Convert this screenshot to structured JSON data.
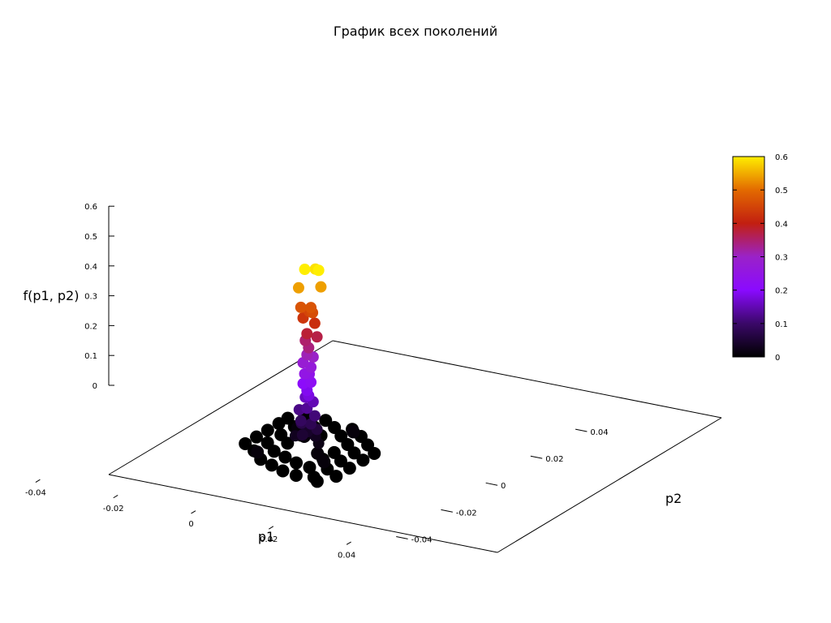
{
  "chart_data": {
    "type": "scatter",
    "title": "График всех поколений",
    "xlabel": "p1",
    "ylabel": "p2",
    "zlabel": "f(p1, p2)",
    "xlim": [
      -0.05,
      0.05
    ],
    "ylim": [
      -0.05,
      0.05
    ],
    "zlim": [
      0,
      0.6
    ],
    "xticks": [
      "-0.04",
      "-0.02",
      "0",
      "0.02",
      "0.04"
    ],
    "yticks": [
      "-0.04",
      "-0.02",
      "0",
      "0.02",
      "0.04"
    ],
    "zticks": [
      "0",
      "0.1",
      "0.2",
      "0.3",
      "0.4",
      "0.5",
      "0.6"
    ],
    "colorbar": {
      "range": [
        0,
        0.6
      ],
      "ticks": [
        "0",
        "0.1",
        "0.2",
        "0.3",
        "0.4",
        "0.5",
        "0.6"
      ],
      "palette": [
        "#000000",
        "#3a0868",
        "#8a0aff",
        "#9a22c8",
        "#c21f10",
        "#e36a00",
        "#ffee00"
      ]
    },
    "grid": false,
    "series": [
      {
        "points": [
          {
            "x": 0.001,
            "y": -0.001,
            "z": 0.6
          },
          {
            "x": 0.004,
            "y": 0.0,
            "z": 0.6
          },
          {
            "x": 0.002,
            "y": 0.002,
            "z": 0.59
          },
          {
            "x": 0.0,
            "y": -0.002,
            "z": 0.54
          },
          {
            "x": 0.004,
            "y": 0.001,
            "z": 0.54
          },
          {
            "x": 0.0,
            "y": -0.001,
            "z": 0.47
          },
          {
            "x": 0.002,
            "y": 0.0,
            "z": 0.47
          },
          {
            "x": 0.003,
            "y": -0.001,
            "z": 0.46
          },
          {
            "x": 0.001,
            "y": 0.001,
            "z": 0.45
          },
          {
            "x": 0.0,
            "y": 0.0,
            "z": 0.43
          },
          {
            "x": 0.003,
            "y": 0.0,
            "z": 0.42
          },
          {
            "x": 0.001,
            "y": 0.0,
            "z": 0.38
          },
          {
            "x": 0.003,
            "y": 0.001,
            "z": 0.37
          },
          {
            "x": 0.0,
            "y": 0.001,
            "z": 0.35
          },
          {
            "x": 0.002,
            "y": -0.001,
            "z": 0.34
          },
          {
            "x": 0.001,
            "y": 0.0,
            "z": 0.31
          },
          {
            "x": 0.002,
            "y": 0.001,
            "z": 0.3
          },
          {
            "x": 0.0,
            "y": 0.0,
            "z": 0.28
          },
          {
            "x": 0.002,
            "y": 0.0,
            "z": 0.27
          },
          {
            "x": 0.001,
            "y": -0.001,
            "z": 0.25
          },
          {
            "x": 0.001,
            "y": 0.001,
            "z": 0.24
          },
          {
            "x": 0.002,
            "y": 0.0,
            "z": 0.22
          },
          {
            "x": 0.0,
            "y": 0.0,
            "z": 0.21
          },
          {
            "x": 0.001,
            "y": 0.0,
            "z": 0.19
          },
          {
            "x": 0.002,
            "y": -0.001,
            "z": 0.18
          },
          {
            "x": 0.0,
            "y": 0.001,
            "z": 0.16
          },
          {
            "x": 0.002,
            "y": 0.001,
            "z": 0.15
          },
          {
            "x": 0.001,
            "y": 0.0,
            "z": 0.13
          },
          {
            "x": -0.001,
            "y": 0.0,
            "z": 0.12
          },
          {
            "x": 0.003,
            "y": 0.0,
            "z": 0.11
          },
          {
            "x": 0.0,
            "y": -0.001,
            "z": 0.09
          },
          {
            "x": 0.002,
            "y": 0.0,
            "z": 0.08
          },
          {
            "x": -0.001,
            "y": 0.001,
            "z": 0.07
          },
          {
            "x": 0.003,
            "y": 0.001,
            "z": 0.06
          },
          {
            "x": 0.001,
            "y": -0.002,
            "z": 0.05
          },
          {
            "x": 0.0,
            "y": 0.002,
            "z": 0.04
          },
          {
            "x": 0.002,
            "y": 0.002,
            "z": 0.03
          },
          {
            "x": -0.002,
            "y": 0.0,
            "z": 0.03
          },
          {
            "x": 0.004,
            "y": 0.0,
            "z": 0.02
          },
          {
            "x": -0.012,
            "y": -0.005,
            "z": 0.0
          },
          {
            "x": -0.012,
            "y": 0.0,
            "z": 0.0
          },
          {
            "x": -0.012,
            "y": 0.005,
            "z": 0.0
          },
          {
            "x": -0.012,
            "y": 0.01,
            "z": 0.0
          },
          {
            "x": -0.012,
            "y": 0.014,
            "z": 0.0
          },
          {
            "x": -0.008,
            "y": -0.008,
            "z": 0.0
          },
          {
            "x": -0.008,
            "y": -0.002,
            "z": 0.0
          },
          {
            "x": -0.008,
            "y": 0.004,
            "z": 0.0
          },
          {
            "x": -0.008,
            "y": 0.01,
            "z": 0.0
          },
          {
            "x": -0.008,
            "y": 0.016,
            "z": 0.0
          },
          {
            "x": -0.004,
            "y": -0.012,
            "z": 0.0
          },
          {
            "x": -0.004,
            "y": -0.006,
            "z": 0.0
          },
          {
            "x": -0.004,
            "y": 0.0,
            "z": 0.0
          },
          {
            "x": -0.004,
            "y": 0.006,
            "z": 0.0
          },
          {
            "x": -0.004,
            "y": 0.012,
            "z": 0.0
          },
          {
            "x": -0.004,
            "y": 0.017,
            "z": 0.0
          },
          {
            "x": 0.0,
            "y": -0.014,
            "z": 0.0
          },
          {
            "x": 0.0,
            "y": -0.008,
            "z": 0.0
          },
          {
            "x": 0.0,
            "y": 0.008,
            "z": 0.0
          },
          {
            "x": 0.0,
            "y": 0.014,
            "z": 0.0
          },
          {
            "x": 0.004,
            "y": -0.016,
            "z": 0.0
          },
          {
            "x": 0.004,
            "y": -0.01,
            "z": 0.0
          },
          {
            "x": 0.004,
            "y": 0.01,
            "z": 0.0
          },
          {
            "x": 0.004,
            "y": 0.015,
            "z": 0.0
          },
          {
            "x": 0.008,
            "y": -0.017,
            "z": 0.0
          },
          {
            "x": 0.008,
            "y": -0.011,
            "z": 0.0
          },
          {
            "x": 0.008,
            "y": -0.005,
            "z": 0.0
          },
          {
            "x": 0.008,
            "y": 0.0,
            "z": 0.0
          },
          {
            "x": 0.008,
            "y": 0.006,
            "z": 0.0
          },
          {
            "x": 0.008,
            "y": 0.012,
            "z": 0.0
          },
          {
            "x": 0.012,
            "y": -0.016,
            "z": 0.0
          },
          {
            "x": 0.012,
            "y": -0.01,
            "z": 0.0
          },
          {
            "x": 0.012,
            "y": -0.004,
            "z": 0.0
          },
          {
            "x": 0.012,
            "y": 0.002,
            "z": 0.0
          },
          {
            "x": 0.012,
            "y": 0.008,
            "z": 0.0
          },
          {
            "x": 0.016,
            "y": -0.013,
            "z": 0.0
          },
          {
            "x": 0.016,
            "y": -0.007,
            "z": 0.0
          },
          {
            "x": 0.016,
            "y": -0.001,
            "z": 0.0
          },
          {
            "x": 0.016,
            "y": 0.004,
            "z": 0.0
          },
          {
            "x": -0.01,
            "y": 0.018,
            "z": 0.0
          },
          {
            "x": 0.014,
            "y": -0.018,
            "z": 0.0
          },
          {
            "x": -0.006,
            "y": -0.01,
            "z": 0.01
          },
          {
            "x": 0.006,
            "y": 0.012,
            "z": 0.01
          },
          {
            "x": -0.002,
            "y": 0.004,
            "z": 0.01
          },
          {
            "x": 0.006,
            "y": -0.004,
            "z": 0.01
          },
          {
            "x": -0.006,
            "y": 0.008,
            "z": 0.01
          },
          {
            "x": 0.01,
            "y": -0.008,
            "z": 0.01
          }
        ]
      }
    ]
  }
}
